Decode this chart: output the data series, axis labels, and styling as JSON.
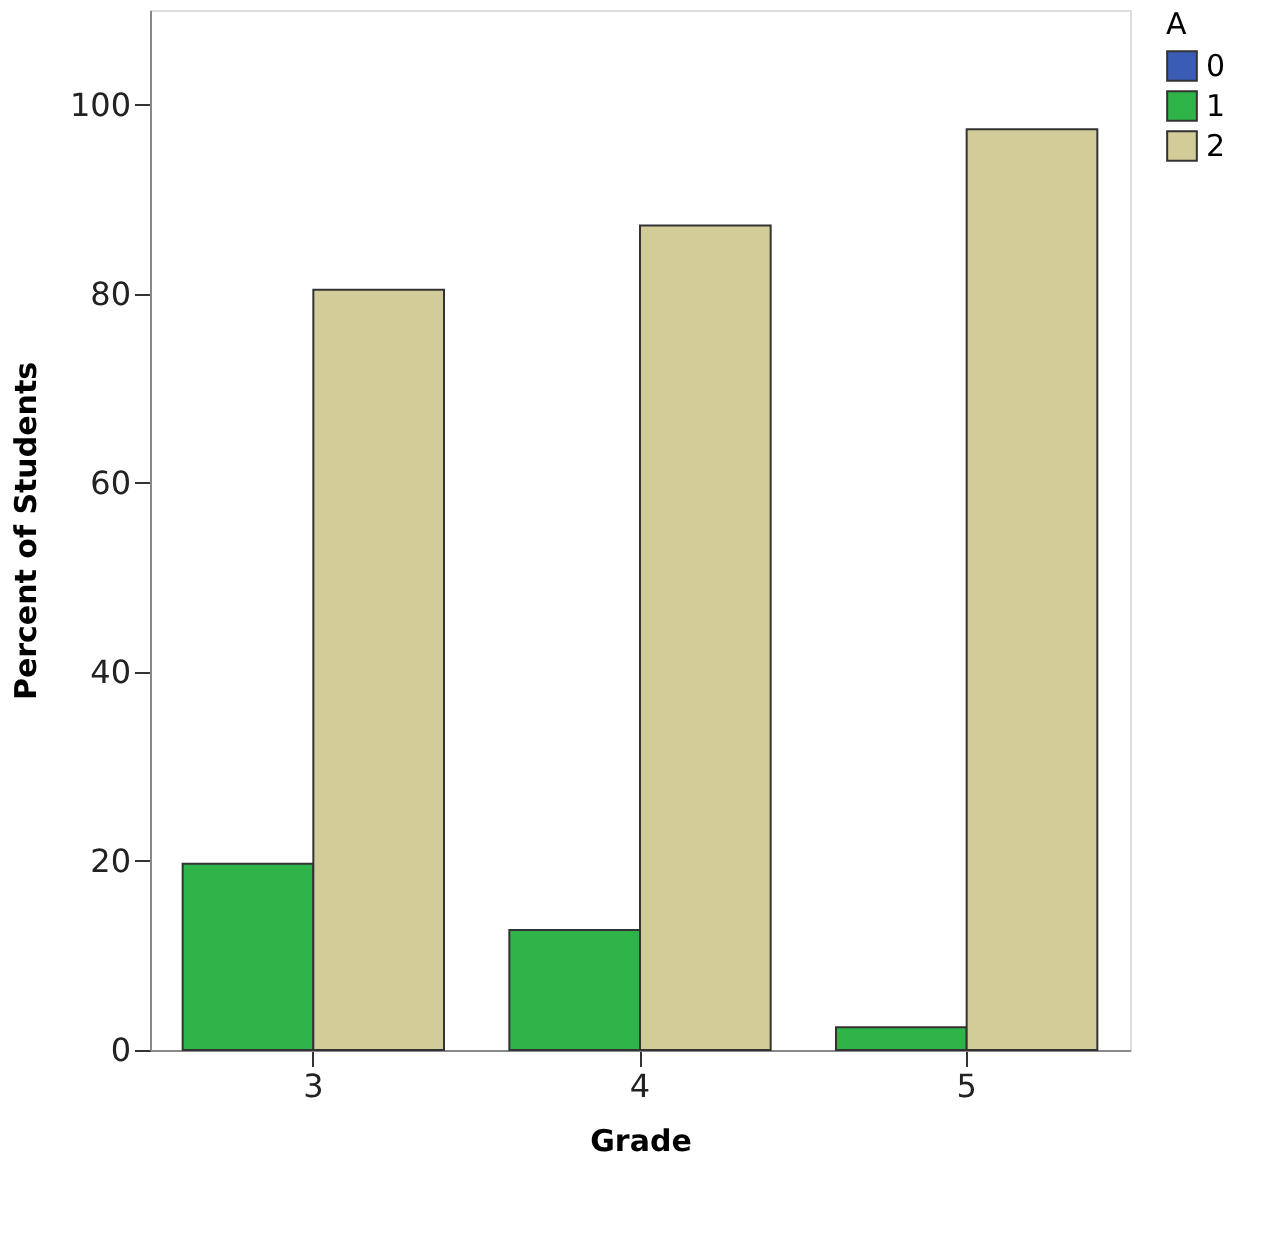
{
  "chart_data": {
    "type": "bar",
    "xlabel": "Grade",
    "ylabel": "Percent of Students",
    "legend_title": "A",
    "categories": [
      "3",
      "4",
      "5"
    ],
    "series": [
      {
        "name": "0",
        "color": "#3b5cb5",
        "values": [
          null,
          null,
          null
        ]
      },
      {
        "name": "1",
        "color": "#2fb44a",
        "values": [
          19.7,
          12.7,
          2.4
        ]
      },
      {
        "name": "2",
        "color": "#d2cc98",
        "values": [
          80.4,
          87.2,
          97.4
        ]
      }
    ],
    "ylim": [
      0,
      110
    ],
    "yticks": [
      0,
      20,
      40,
      60,
      80,
      100
    ],
    "grid": false,
    "legend": "top right"
  }
}
